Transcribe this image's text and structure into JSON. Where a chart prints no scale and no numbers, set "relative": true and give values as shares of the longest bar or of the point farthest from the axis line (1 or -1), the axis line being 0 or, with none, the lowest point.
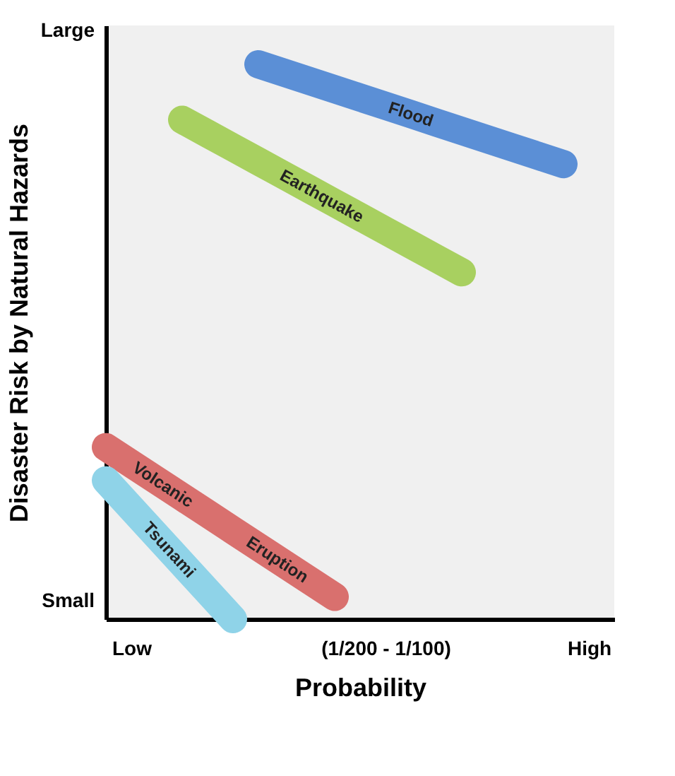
{
  "chart_data": {
    "type": "line",
    "relative": true,
    "xlabel": "Probability",
    "ylabel": "Disaster Risk by Natural Hazards",
    "categories": [
      null,
      "Low",
      null,
      null,
      null,
      null,
      null,
      null,
      null,
      null,
      null,
      "(1/200 - 1/100)",
      null,
      null,
      null,
      null,
      null,
      null,
      null,
      "High",
      null
    ],
    "annotations": [
      "Small",
      "Large"
    ],
    "series": [
      {
        "name": "Flood",
        "color": "#5b8fd6",
        "values": [
          null,
          null,
          null,
          null,
          null,
          null,
          1.0,
          0.985,
          0.97,
          0.955,
          0.94,
          0.925,
          0.91,
          0.895,
          0.88,
          0.865,
          0.85,
          0.835,
          0.82,
          null,
          null
        ]
      },
      {
        "name": "Earthquake",
        "color": "#a8d060",
        "values": [
          null,
          null,
          null,
          0.9,
          0.875,
          0.85,
          0.825,
          0.8,
          0.775,
          0.75,
          0.725,
          0.7,
          0.675,
          0.65,
          0.625,
          null,
          null,
          null,
          null,
          null,
          null
        ]
      },
      {
        "name": "Volcanic Eruption",
        "color": "#d9706e",
        "values": [
          0.31,
          0.28,
          0.25,
          0.22,
          0.19,
          0.16,
          0.13,
          0.1,
          0.07,
          0.04,
          null,
          null,
          null,
          null,
          null,
          null,
          null,
          null,
          null,
          null,
          null
        ]
      },
      {
        "name": "Tsunami",
        "color": "#8fd3e8",
        "values": [
          0.25,
          0.2,
          0.15,
          0.1,
          0.05,
          0.0,
          null,
          null,
          null,
          null,
          null,
          null,
          null,
          null,
          null,
          null,
          null,
          null,
          null,
          null,
          null
        ]
      }
    ],
    "grid": false,
    "line_style": "solid"
  }
}
